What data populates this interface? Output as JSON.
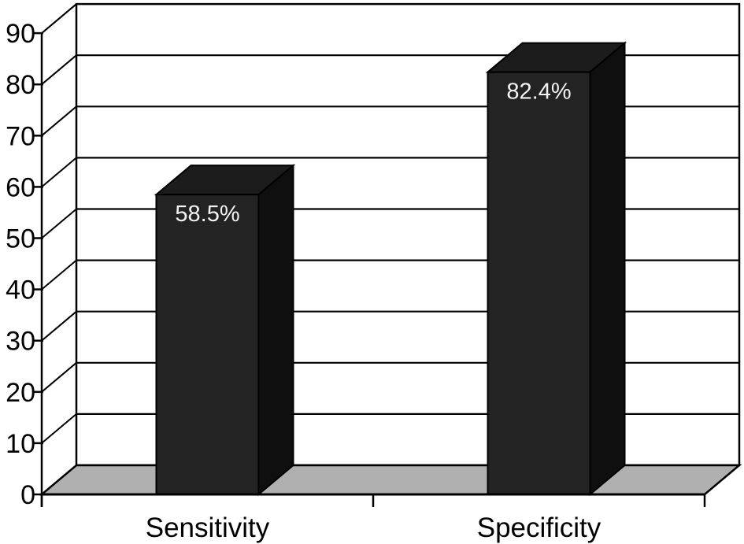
{
  "chart_data": {
    "type": "bar",
    "style": "3d-column",
    "title": "",
    "xlabel": "",
    "ylabel": "",
    "categories": [
      "Sensitivity",
      "Specificity"
    ],
    "values": [
      58.5,
      82.4
    ],
    "bar_labels": [
      "58.5%",
      "82.4%"
    ],
    "yticks": [
      0,
      10,
      20,
      30,
      40,
      50,
      60,
      70,
      80,
      90
    ],
    "ylim": [
      0,
      90
    ],
    "grid": "horizontal",
    "legend": "none",
    "colors": {
      "bar_front": "#232323",
      "bar_top": "#1c1c1c",
      "bar_side": "#0f0f0f",
      "outline": "#000000",
      "floor": "#b0b0b0",
      "wall": "#ffffff",
      "bar_label_text": "#f2f2f2",
      "axis_text": "#000000",
      "background": "#ffffff"
    }
  }
}
